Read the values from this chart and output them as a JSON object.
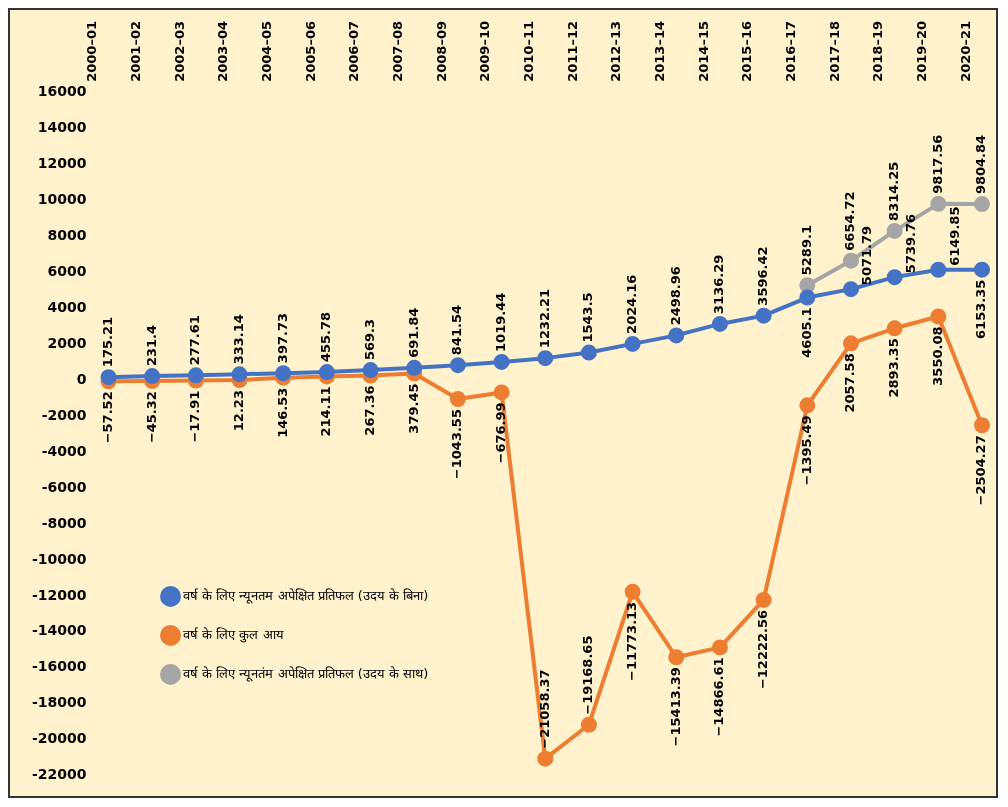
{
  "chart_data": {
    "type": "line",
    "categories": [
      "2000–01",
      "2001–02",
      "2002–03",
      "2003–04",
      "2004–05",
      "2005–06",
      "2006–07",
      "2007–08",
      "2008–09",
      "2009–10",
      "2010–11",
      "2011–12",
      "2012–13",
      "2013–14",
      "2014–15",
      "2015–16",
      "2016–17",
      "2017–18",
      "2018–19",
      "2019–20",
      "2020–21"
    ],
    "series": [
      {
        "name": "वर्ष के लिए न्यूनतम अपेक्षित प्रतिफल (उदय के बिना)",
        "color": "#4472c4",
        "values": [
          175.21,
          231.4,
          277.61,
          333.14,
          397.73,
          455.78,
          569.3,
          691.84,
          841.54,
          1019.44,
          1232.21,
          1543.5,
          2024.16,
          2498.96,
          3136.29,
          3596.42,
          4605.1,
          5071.79,
          5739.76,
          6149.85,
          6153.35
        ],
        "value_labels": [
          "175.21",
          "231.4",
          "277.61",
          "333.14",
          "397.73",
          "455.78",
          "569.3",
          "691.84",
          "841.54",
          "1019.44",
          "1232.21",
          "1543.5",
          "2024.16",
          "2498.96",
          "3136.29",
          "3596.42",
          "4605.1",
          "5071.79",
          "5739.76",
          "6149.85",
          "6153.35"
        ]
      },
      {
        "name": "वर्ष के लिए कुल आय",
        "color": "#ed7d31",
        "values": [
          -57.52,
          -45.32,
          -17.91,
          12.23,
          146.53,
          214.11,
          267.36,
          379.45,
          -1043.55,
          -676.99,
          -21058.37,
          -19168.65,
          -11773.13,
          -15413.39,
          -14866.61,
          -12222.56,
          -1395.49,
          2057.58,
          2893.35,
          3550.08,
          -2504.27
        ],
        "value_labels": [
          "−57.52",
          "−45.32",
          "−17.91",
          "12.23",
          "146.53",
          "214.11",
          "267.36",
          "379.45",
          "−1043.55",
          "−676.99",
          "−21058.37",
          "−19168.65",
          "−11773.13",
          "−15413.39",
          "−14866.61",
          "−12222.56",
          "−1395.49",
          "2057.58",
          "2893.35",
          "3550.08",
          "−2504.27"
        ]
      },
      {
        "name": "वर्ष के लिए न्यूनतंम अपेक्षित प्रतिफल (उदय के साथ)",
        "color": "#a5a5a5",
        "values": [
          null,
          null,
          null,
          null,
          null,
          null,
          null,
          null,
          null,
          null,
          null,
          null,
          null,
          null,
          null,
          null,
          5289.1,
          6654.72,
          8314.25,
          9817.56,
          9804.84
        ],
        "value_labels": [
          null,
          null,
          null,
          null,
          null,
          null,
          null,
          null,
          null,
          null,
          null,
          null,
          null,
          null,
          null,
          null,
          "5289.1",
          "6654.72",
          "8314.25",
          "9817.56",
          "9804.84"
        ]
      }
    ],
    "ylim": [
      -22000,
      16000
    ],
    "yticks": [
      -22000,
      -20000,
      -18000,
      -16000,
      -14000,
      -12000,
      -10000,
      -8000,
      -6000,
      -4000,
      -2000,
      0,
      2000,
      4000,
      6000,
      8000,
      10000,
      12000,
      14000,
      16000
    ],
    "grid": false,
    "legend": "bottom left",
    "marker": "circle",
    "line_style": "solid"
  }
}
